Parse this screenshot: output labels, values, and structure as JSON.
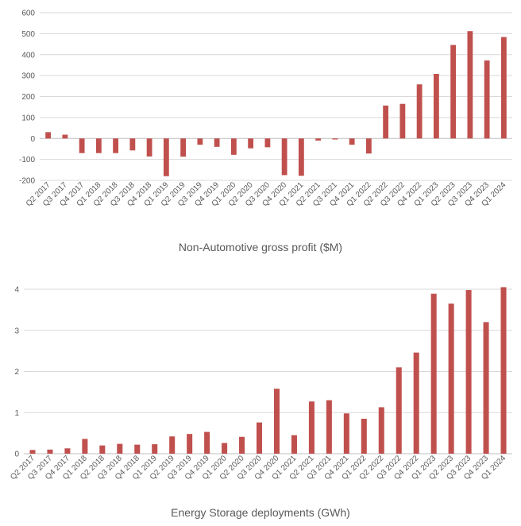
{
  "chart_data": [
    {
      "type": "bar",
      "title": "Non-Automotive gross profit ($M)",
      "categories": [
        "Q2 2017",
        "Q3 2017",
        "Q4 2017",
        "Q1 2018",
        "Q2 2018",
        "Q3 2018",
        "Q4 2018",
        "Q1 2019",
        "Q2 2019",
        "Q3 2019",
        "Q4 2019",
        "Q1 2020",
        "Q2 2020",
        "Q3 2020",
        "Q4 2020",
        "Q1 2021",
        "Q2 2021",
        "Q3 2021",
        "Q4 2021",
        "Q1 2022",
        "Q2 2022",
        "Q3 2022",
        "Q4 2022",
        "Q1 2023",
        "Q2 2023",
        "Q3 2023",
        "Q4 2023",
        "Q1 2024"
      ],
      "values": [
        30,
        18,
        -70,
        -70,
        -70,
        -57,
        -86,
        -180,
        -87,
        -30,
        -40,
        -78,
        -47,
        -42,
        -175,
        -178,
        -10,
        -5,
        -30,
        -72,
        157,
        165,
        258,
        308,
        446,
        512,
        372,
        484
      ],
      "ylim": [
        -200,
        600
      ],
      "yticks": [
        -200,
        -100,
        0,
        100,
        200,
        300,
        400,
        500,
        600
      ],
      "ytick_labels": [
        "-200",
        "-100",
        "0",
        "100",
        "200",
        "300",
        "400",
        "500",
        "600"
      ],
      "bar_color": "#c0504d",
      "grid": true
    },
    {
      "type": "bar",
      "title": "Energy Storage deployments (GWh)",
      "categories": [
        "Q2 2017",
        "Q3 2017",
        "Q4 2017",
        "Q1 2018",
        "Q2 2018",
        "Q3 2018",
        "Q4 2018",
        "Q1 2019",
        "Q2 2019",
        "Q3 2019",
        "Q4 2019",
        "Q1 2020",
        "Q2 2020",
        "Q3 2020",
        "Q4 2020",
        "Q1 2021",
        "Q2 2021",
        "Q3 2021",
        "Q4 2021",
        "Q1 2022",
        "Q2 2022",
        "Q3 2022",
        "Q4 2022",
        "Q1 2023",
        "Q2 2023",
        "Q3 2023",
        "Q4 2023",
        "Q1 2024"
      ],
      "values": [
        0.09,
        0.1,
        0.13,
        0.36,
        0.2,
        0.24,
        0.22,
        0.23,
        0.42,
        0.48,
        0.53,
        0.26,
        0.41,
        0.76,
        1.58,
        0.45,
        1.27,
        1.3,
        0.98,
        0.85,
        1.13,
        2.1,
        2.46,
        3.89,
        3.65,
        3.98,
        3.2,
        4.05
      ],
      "ylim": [
        0,
        4
      ],
      "yticks": [
        0,
        1,
        2,
        3,
        4
      ],
      "ytick_labels": [
        "0",
        "1",
        "2",
        "3",
        "4"
      ],
      "bar_color": "#c0504d",
      "grid": true
    }
  ]
}
